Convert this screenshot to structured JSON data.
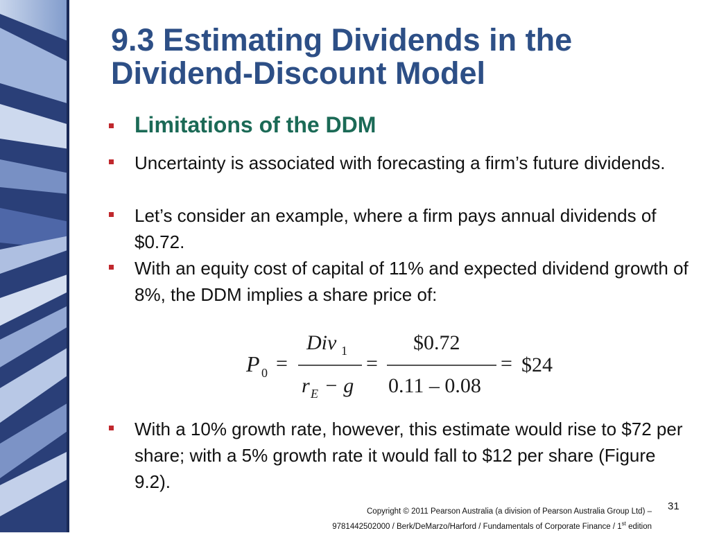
{
  "slide": {
    "title_line1": "9.3 Estimating Dividends in the",
    "title_line2": "Dividend-Discount Model",
    "heading": "Limitations of the DDM",
    "bullets": [
      "Uncertainty is associated with forecasting a firm’s future dividends.",
      "Let’s consider an example, where a firm pays annual dividends of $0.72.",
      "With an equity cost of capital of 11% and expected dividend growth of 8%, the DDM implies a share price of:",
      "With a 10% growth rate, however, this estimate would rise to $72 per share; with a 5% growth rate it would fall to $12 per share (Figure 9.2)."
    ],
    "formula": {
      "lhs": "P",
      "lhs_sub": "0",
      "num1": "Div",
      "num1_sub": "1",
      "den1_r": "r",
      "den1_r_sub": "E",
      "den1_rest": " − g",
      "equals": "=",
      "num2": "$0.72",
      "den2": "0.11 – 0.08",
      "result": "$24"
    },
    "footer_line1": "Copyright © 2011 Pearson Australia (a division of Pearson Australia Group Ltd) –",
    "footer_line2_pre": "9781442502000 / Berk/DeMarzo/Harford / Fundamentals of Corporate Finance / 1",
    "footer_line2_sup": "st",
    "footer_line2_post": " edition",
    "page_number": "31"
  },
  "colors": {
    "title": "#2d4f86",
    "heading": "#1b6a56",
    "bullet_marker": "#c0282d",
    "side_panel_dark": "#1f3268",
    "side_panel_light": "#8aa3cf"
  }
}
